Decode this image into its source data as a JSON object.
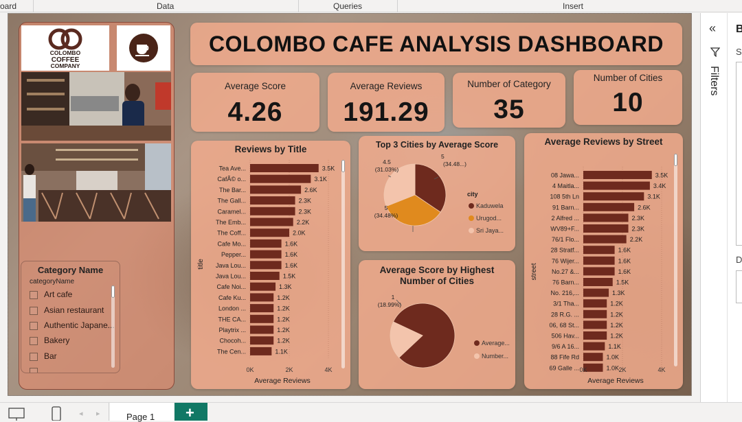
{
  "ribbon": {
    "tabs": [
      "oard",
      "Data",
      "Queries",
      "Insert"
    ]
  },
  "title": "COLOMBO CAFE ANALYSIS DASHBOARD",
  "logo": {
    "line1": "COLOMBO",
    "line2": "COFFEE",
    "line3": "COMPANY"
  },
  "kpis": [
    {
      "label": "Average Score",
      "value": "4.26"
    },
    {
      "label": "Average Reviews",
      "value": "191.29"
    },
    {
      "label": "Number of Category",
      "value": "35"
    },
    {
      "label": "Number of Cities",
      "value": "10"
    }
  ],
  "slicer": {
    "title": "Category Name",
    "field": "categoryName",
    "items": [
      "Art cafe",
      "Asian restaurant",
      "Authentic Japane...",
      "Bakery",
      "Bar"
    ]
  },
  "reviews_by_title": {
    "title": "Reviews by Title",
    "ylabel": "title",
    "xlabel": "Average Reviews",
    "ticks": [
      "0K",
      "2K",
      "4K"
    ],
    "chart_data": {
      "type": "bar",
      "xlim": [
        0,
        4000
      ],
      "categories": [
        "Tea Ave...",
        "CafÃ© o...",
        "The Bar...",
        "The Gall...",
        "Caramel...",
        "The Emb...",
        "The Coff...",
        "Cafe Mo...",
        "Pepper...",
        "Java Lou...",
        "Java Lou...",
        "Cafe Noi...",
        "Cafe Ku...",
        "London ...",
        "THE CA...",
        "Playtrix ...",
        "Chocoh...",
        "The Cen..."
      ],
      "values": [
        3500,
        3100,
        2600,
        2300,
        2300,
        2200,
        2000,
        1600,
        1600,
        1600,
        1500,
        1300,
        1200,
        1200,
        1200,
        1200,
        1200,
        1100
      ],
      "labels": [
        "3.5K",
        "3.1K",
        "2.6K",
        "2.3K",
        "2.3K",
        "2.2K",
        "2.0K",
        "1.6K",
        "1.6K",
        "1.6K",
        "1.5K",
        "1.3K",
        "1.2K",
        "1.2K",
        "1.2K",
        "1.2K",
        "1.2K",
        "1.1K"
      ]
    }
  },
  "top3": {
    "title": "Top 3 Cities by Average Score",
    "legend_title": "city",
    "chart_data": {
      "type": "pie",
      "categories": [
        "Kaduwela",
        "Urugod...",
        "Sri Jaya..."
      ],
      "values": [
        5,
        5,
        4.5
      ],
      "colors": [
        "#6e2a1e",
        "#e08a1e",
        "#f3c4ac"
      ],
      "labels": [
        {
          "v": "5",
          "p": "(34.48...)"
        },
        {
          "v": "5",
          "p": "(34.48%)"
        },
        {
          "v": "4.5",
          "p": "(31.03%)"
        }
      ]
    }
  },
  "highest": {
    "title1": "Average Score by Highest",
    "title2": "Number of Cities",
    "chart_data": {
      "type": "pie",
      "categories": [
        "Average...",
        "Number..."
      ],
      "values": [
        81.01,
        18.99
      ],
      "colors": [
        "#6e2a1e",
        "#f3c4ac"
      ],
      "labels": [
        {
          "v": "1",
          "p": "(18.99%)"
        }
      ]
    }
  },
  "street": {
    "title": "Average Reviews by Street",
    "ylabel": "street",
    "xlabel": "Average Reviews",
    "ticks": [
      "0K",
      "2K",
      "4K"
    ],
    "chart_data": {
      "type": "bar",
      "xlim": [
        0,
        4000
      ],
      "categories": [
        "08 Jawa...",
        "4 Maitla...",
        "108 5th Ln",
        "91 Barn...",
        "2 Alfred ...",
        "WV89+F...",
        "76/1 Flo...",
        "28 Stratf...",
        "76 Wijer...",
        "No.27 &...",
        "76 Barn...",
        "No. 216,...",
        "3/1 Tha...",
        "28 R.G. ...",
        "06, 68 St...",
        "506 Hav...",
        "9/6 A 16...",
        "88 Fife Rd",
        "69 Galle ..."
      ],
      "values": [
        3500,
        3400,
        3100,
        2600,
        2300,
        2300,
        2200,
        1600,
        1600,
        1600,
        1500,
        1300,
        1200,
        1200,
        1200,
        1200,
        1100,
        1000,
        1000
      ],
      "labels": [
        "3.5K",
        "3.4K",
        "3.1K",
        "2.6K",
        "2.3K",
        "2.3K",
        "2.2K",
        "1.6K",
        "1.6K",
        "1.6K",
        "1.5K",
        "1.3K",
        "1.2K",
        "1.2K",
        "1.2K",
        "1.2K",
        "1.1K",
        "1.0K",
        "1.0K"
      ]
    }
  },
  "rightpane": {
    "filters_label": "Filters",
    "letter_b": "B",
    "letter_s": "S",
    "letter_d": "D"
  },
  "bottom": {
    "page_tab": "Page 1",
    "add_label": "+"
  }
}
